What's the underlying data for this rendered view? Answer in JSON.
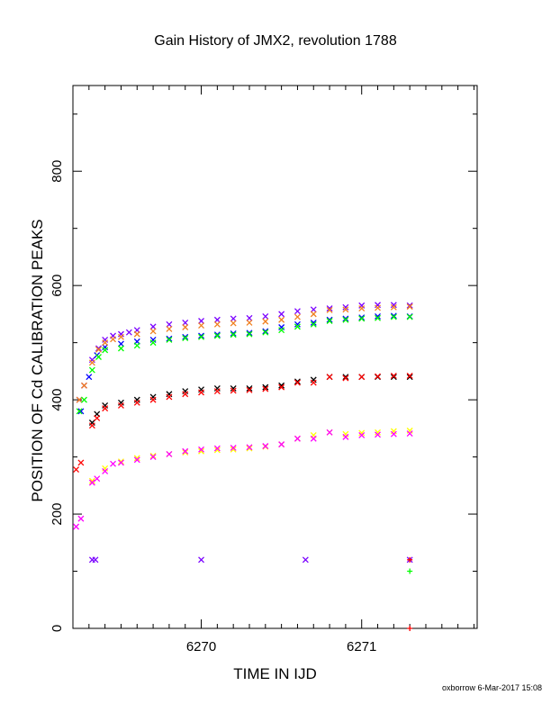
{
  "chart_data": {
    "type": "scatter",
    "title": "Gain History of JMX2, revolution 1788",
    "xlabel": "TIME IN IJD",
    "ylabel": "POSITION OF Cd CALIBRATION PEAKS",
    "xlim": [
      6269.2,
      6271.72
    ],
    "ylim": [
      0,
      950
    ],
    "x_ticks": [
      6270,
      6271
    ],
    "y_ticks": [
      0,
      200,
      400,
      600,
      800
    ],
    "grid": false,
    "series": [
      {
        "color": "#7a00ff",
        "marker": "x",
        "points": [
          [
            6269.24,
            400
          ],
          [
            6269.27,
            425
          ],
          [
            6269.32,
            470
          ],
          [
            6269.36,
            490
          ],
          [
            6269.4,
            505
          ],
          [
            6269.45,
            512
          ],
          [
            6269.5,
            515
          ],
          [
            6269.55,
            518
          ],
          [
            6269.6,
            522
          ],
          [
            6269.7,
            528
          ],
          [
            6269.8,
            532
          ],
          [
            6269.9,
            535
          ],
          [
            6270.0,
            538
          ],
          [
            6270.1,
            540
          ],
          [
            6270.2,
            542
          ],
          [
            6270.3,
            543
          ],
          [
            6270.4,
            546
          ],
          [
            6270.5,
            550
          ],
          [
            6270.6,
            555
          ],
          [
            6270.7,
            558
          ],
          [
            6270.8,
            560
          ],
          [
            6270.9,
            562
          ],
          [
            6271.0,
            565
          ],
          [
            6271.1,
            566
          ],
          [
            6271.2,
            566
          ],
          [
            6271.3,
            565
          ]
        ]
      },
      {
        "color": "#0000ff",
        "marker": "x",
        "points": [
          [
            6269.25,
            380
          ],
          [
            6269.3,
            440
          ],
          [
            6269.35,
            478
          ],
          [
            6269.4,
            492
          ],
          [
            6269.5,
            498
          ],
          [
            6269.6,
            502
          ],
          [
            6269.7,
            505
          ],
          [
            6269.8,
            507
          ],
          [
            6269.9,
            510
          ],
          [
            6270.0,
            512
          ],
          [
            6270.1,
            514
          ],
          [
            6270.2,
            516
          ],
          [
            6270.3,
            517
          ],
          [
            6270.4,
            520
          ],
          [
            6270.5,
            527
          ],
          [
            6270.6,
            532
          ],
          [
            6270.7,
            535
          ],
          [
            6270.8,
            540
          ],
          [
            6270.9,
            542
          ],
          [
            6271.0,
            544
          ],
          [
            6271.1,
            546
          ],
          [
            6271.2,
            547
          ],
          [
            6271.3,
            546
          ]
        ]
      },
      {
        "color": "#f08020",
        "marker": "x",
        "points": [
          [
            6269.24,
            400
          ],
          [
            6269.27,
            425
          ],
          [
            6269.32,
            465
          ],
          [
            6269.36,
            488
          ],
          [
            6269.4,
            500
          ],
          [
            6269.45,
            506
          ],
          [
            6269.5,
            510
          ],
          [
            6269.6,
            515
          ],
          [
            6269.7,
            520
          ],
          [
            6269.8,
            524
          ],
          [
            6269.9,
            527
          ],
          [
            6270.0,
            530
          ],
          [
            6270.1,
            532
          ],
          [
            6270.2,
            534
          ],
          [
            6270.3,
            535
          ],
          [
            6270.4,
            537
          ],
          [
            6270.5,
            540
          ],
          [
            6270.6,
            545
          ],
          [
            6270.7,
            550
          ],
          [
            6270.8,
            557
          ],
          [
            6270.9,
            558
          ],
          [
            6271.0,
            560
          ],
          [
            6271.1,
            561
          ],
          [
            6271.2,
            562
          ],
          [
            6271.3,
            563
          ]
        ]
      },
      {
        "color": "#00ff00",
        "marker": "x",
        "points": [
          [
            6269.24,
            380
          ],
          [
            6269.27,
            400
          ],
          [
            6269.32,
            452
          ],
          [
            6269.36,
            475
          ],
          [
            6269.4,
            487
          ],
          [
            6269.5,
            490
          ],
          [
            6269.6,
            495
          ],
          [
            6269.7,
            500
          ],
          [
            6269.8,
            505
          ],
          [
            6269.9,
            508
          ],
          [
            6270.0,
            510
          ],
          [
            6270.1,
            512
          ],
          [
            6270.2,
            514
          ],
          [
            6270.3,
            515
          ],
          [
            6270.4,
            518
          ],
          [
            6270.5,
            522
          ],
          [
            6270.6,
            528
          ],
          [
            6270.7,
            532
          ],
          [
            6270.8,
            538
          ],
          [
            6270.9,
            540
          ],
          [
            6271.0,
            542
          ],
          [
            6271.1,
            543
          ],
          [
            6271.2,
            545
          ],
          [
            6271.3,
            545
          ]
        ]
      },
      {
        "color": "#000000",
        "marker": "x",
        "points": [
          [
            6269.32,
            360
          ],
          [
            6269.35,
            375
          ],
          [
            6269.4,
            390
          ],
          [
            6269.5,
            395
          ],
          [
            6269.6,
            400
          ],
          [
            6269.7,
            405
          ],
          [
            6269.8,
            410
          ],
          [
            6269.9,
            415
          ],
          [
            6270.0,
            418
          ],
          [
            6270.1,
            420
          ],
          [
            6270.2,
            420
          ],
          [
            6270.3,
            420
          ],
          [
            6270.4,
            422
          ],
          [
            6270.5,
            425
          ],
          [
            6270.6,
            432
          ],
          [
            6270.7,
            435
          ],
          [
            6270.8,
            440
          ],
          [
            6270.9,
            440
          ],
          [
            6271.0,
            440
          ],
          [
            6271.1,
            440
          ],
          [
            6271.2,
            440
          ],
          [
            6271.3,
            440
          ]
        ]
      },
      {
        "color": "#ff0000",
        "marker": "x",
        "points": [
          [
            6269.22,
            278
          ],
          [
            6269.25,
            290
          ],
          [
            6269.32,
            355
          ],
          [
            6269.35,
            368
          ],
          [
            6269.4,
            385
          ],
          [
            6269.5,
            390
          ],
          [
            6269.6,
            395
          ],
          [
            6269.7,
            400
          ],
          [
            6269.8,
            405
          ],
          [
            6269.9,
            410
          ],
          [
            6270.0,
            413
          ],
          [
            6270.1,
            415
          ],
          [
            6270.2,
            416
          ],
          [
            6270.3,
            417
          ],
          [
            6270.4,
            419
          ],
          [
            6270.5,
            422
          ],
          [
            6270.6,
            430
          ],
          [
            6270.7,
            430
          ],
          [
            6270.8,
            440
          ],
          [
            6270.9,
            438
          ],
          [
            6271.0,
            440
          ],
          [
            6271.1,
            441
          ],
          [
            6271.2,
            442
          ],
          [
            6271.3,
            442
          ]
        ]
      },
      {
        "color": "#ffff00",
        "marker": "x",
        "points": [
          [
            6269.32,
            258
          ],
          [
            6269.4,
            280
          ],
          [
            6269.5,
            292
          ],
          [
            6269.6,
            298
          ],
          [
            6269.7,
            302
          ],
          [
            6269.8,
            305
          ],
          [
            6269.9,
            308
          ],
          [
            6270.0,
            310
          ],
          [
            6270.1,
            312
          ],
          [
            6270.2,
            313
          ],
          [
            6270.3,
            315
          ],
          [
            6270.4,
            318
          ],
          [
            6270.5,
            322
          ],
          [
            6270.6,
            332
          ],
          [
            6270.7,
            338
          ],
          [
            6270.8,
            343
          ],
          [
            6270.9,
            340
          ],
          [
            6271.0,
            342
          ],
          [
            6271.1,
            343
          ],
          [
            6271.2,
            345
          ],
          [
            6271.3,
            346
          ]
        ]
      },
      {
        "color": "#ff00ff",
        "marker": "x",
        "points": [
          [
            6269.22,
            178
          ],
          [
            6269.25,
            192
          ],
          [
            6269.32,
            255
          ],
          [
            6269.35,
            262
          ],
          [
            6269.4,
            275
          ],
          [
            6269.45,
            288
          ],
          [
            6269.5,
            290
          ],
          [
            6269.6,
            295
          ],
          [
            6269.7,
            300
          ],
          [
            6269.8,
            305
          ],
          [
            6269.9,
            310
          ],
          [
            6270.0,
            313
          ],
          [
            6270.1,
            315
          ],
          [
            6270.2,
            316
          ],
          [
            6270.3,
            317
          ],
          [
            6270.4,
            319
          ],
          [
            6270.5,
            322
          ],
          [
            6270.6,
            332
          ],
          [
            6270.7,
            332
          ],
          [
            6270.8,
            343
          ],
          [
            6270.9,
            335
          ],
          [
            6271.0,
            338
          ],
          [
            6271.1,
            339
          ],
          [
            6271.2,
            340
          ],
          [
            6271.3,
            341
          ]
        ]
      },
      {
        "color": "#7a00ff",
        "marker": "x",
        "points": [
          [
            6269.32,
            120
          ],
          [
            6269.34,
            120
          ],
          [
            6270.0,
            120
          ],
          [
            6270.65,
            120
          ],
          [
            6271.3,
            120
          ]
        ]
      },
      {
        "color": "#ff0000",
        "marker": "+",
        "points": [
          [
            6271.3,
            120
          ],
          [
            6271.3,
            0
          ]
        ]
      },
      {
        "color": "#00ff00",
        "marker": "+",
        "points": [
          [
            6271.3,
            100
          ]
        ]
      }
    ]
  },
  "footer": "oxborrow  6-Mar-2017 15:08"
}
